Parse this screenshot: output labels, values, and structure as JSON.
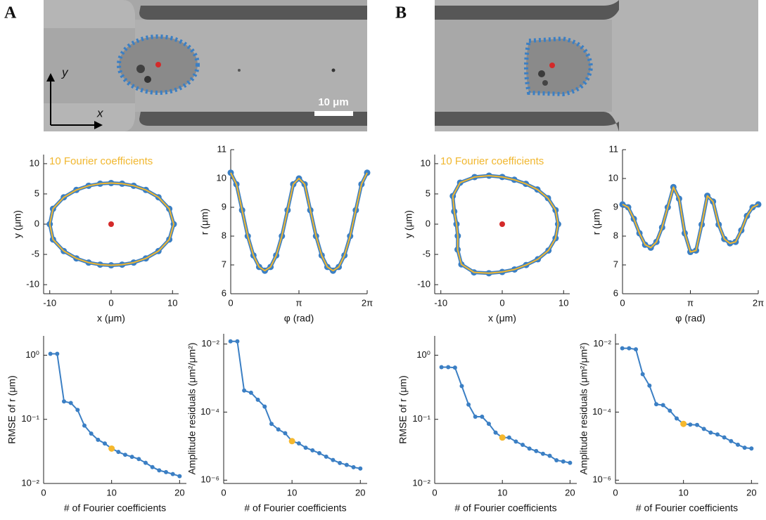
{
  "panels": [
    {
      "label": "A",
      "scale_bar": "10 μm",
      "x_arrow": "x",
      "y_arrow": "y"
    },
    {
      "label": "B"
    }
  ],
  "chart_data": [
    {
      "type": "line",
      "closed": true,
      "annotation": "10 Fourier coefficients",
      "annotation_color": "#f1b72f",
      "xlabel": "x (μm)",
      "ylabel": "y (μm)",
      "xlim": [
        -11,
        11
      ],
      "ylim": [
        -11.5,
        11.5
      ],
      "xticks": [
        -10,
        0,
        10
      ],
      "yticks": [
        -10,
        -5,
        0,
        5,
        10
      ],
      "series": [
        {
          "color": "#3b7fc4",
          "fit_color": "#f1b72f",
          "x": [
            10.2,
            9.47,
            7.71,
            5.66,
            3.67,
            1.79,
            0,
            -1.79,
            -3.67,
            -5.66,
            -7.71,
            -9.47,
            -10,
            -9.47,
            -7.71,
            -5.66,
            -3.67,
            -1.79,
            0,
            1.79,
            3.67,
            5.66,
            7.71,
            9.47
          ],
          "values": [
            0,
            2.54,
            4.45,
            5.66,
            6.35,
            6.69,
            6.8,
            6.69,
            6.35,
            5.66,
            4.45,
            2.54,
            0,
            -2.54,
            -4.45,
            -5.66,
            -6.35,
            -6.69,
            -6.8,
            -6.69,
            -6.35,
            -5.66,
            -4.45,
            -2.54
          ]
        }
      ],
      "center": {
        "x": 0,
        "y": 0,
        "color": "#d42a2a"
      }
    },
    {
      "type": "line",
      "xlabel": "φ (rad)",
      "ylabel": "r (μm)",
      "xlim": [
        0,
        6.2832
      ],
      "ylim": [
        6,
        11
      ],
      "xticks": [
        0,
        {
          "value": 3.1416,
          "label": "π"
        },
        {
          "value": 6.2832,
          "label": "2π"
        }
      ],
      "yticks": [
        6,
        7,
        8,
        9,
        10,
        11
      ],
      "series": [
        {
          "color": "#3b7fc4",
          "fit_color": "#f1b72f",
          "x": [
            0,
            0.262,
            0.524,
            0.785,
            1.047,
            1.309,
            1.571,
            1.833,
            2.094,
            2.356,
            2.618,
            2.88,
            3.142,
            3.403,
            3.665,
            3.927,
            4.189,
            4.451,
            4.712,
            4.974,
            5.236,
            5.498,
            5.76,
            6.021,
            6.283
          ],
          "values": [
            10.2,
            9.8,
            8.9,
            8.0,
            7.33,
            6.93,
            6.8,
            6.93,
            7.33,
            8.0,
            8.9,
            9.8,
            10.0,
            9.8,
            8.9,
            8.0,
            7.33,
            6.93,
            6.8,
            6.93,
            7.33,
            8.0,
            8.9,
            9.8,
            10.2
          ]
        }
      ]
    },
    {
      "type": "line",
      "log_y": true,
      "xlabel": "# of Fourier coefficients",
      "ylabel": "RMSE of r (μm)",
      "xlim": [
        0,
        21
      ],
      "ylim": [
        0.01,
        2
      ],
      "xticks": [
        0,
        10,
        20
      ],
      "yticks": [
        {
          "value": 0.01,
          "label": "10⁻²"
        },
        {
          "value": 0.1,
          "label": "10⁻¹"
        },
        {
          "value": 1,
          "label": "10⁰"
        }
      ],
      "series": [
        {
          "color": "#3b7fc4",
          "x": [
            1,
            2,
            3,
            4,
            5,
            6,
            7,
            8,
            9,
            10,
            11,
            12,
            13,
            14,
            15,
            16,
            17,
            18,
            19,
            20
          ],
          "values": [
            1.05,
            1.05,
            0.19,
            0.18,
            0.14,
            0.08,
            0.06,
            0.048,
            0.042,
            0.035,
            0.031,
            0.028,
            0.026,
            0.024,
            0.021,
            0.018,
            0.016,
            0.015,
            0.014,
            0.013
          ]
        },
        {
          "color": "#f5b82e",
          "line": false,
          "x": [
            10
          ],
          "values": [
            0.035
          ]
        }
      ]
    },
    {
      "type": "line",
      "log_y": true,
      "xlabel": "# of Fourier coefficients",
      "ylabel": "Amplitude residuals (μm²/μm²)",
      "xlim": [
        0,
        21
      ],
      "ylim": [
        8e-07,
        0.02
      ],
      "xticks": [
        0,
        10,
        20
      ],
      "yticks": [
        {
          "value": 1e-06,
          "label": "10⁻⁶"
        },
        {
          "value": 0.0001,
          "label": "10⁻⁴"
        },
        {
          "value": 0.01,
          "label": "10⁻²"
        }
      ],
      "series": [
        {
          "color": "#3b7fc4",
          "x": [
            1,
            2,
            3,
            4,
            5,
            6,
            7,
            8,
            9,
            10,
            11,
            12,
            13,
            14,
            15,
            16,
            17,
            18,
            19,
            20
          ],
          "values": [
            0.012,
            0.012,
            0.00043,
            0.00037,
            0.00023,
            0.000145,
            4.5e-05,
            3.1e-05,
            2.4e-05,
            1.4e-05,
            1.2e-05,
            9e-06,
            7.5e-06,
            6.2e-06,
            4.9e-06,
            3.9e-06,
            3.2e-06,
            2.8e-06,
            2.4e-06,
            2.2e-06
          ]
        },
        {
          "color": "#f5b82e",
          "line": false,
          "x": [
            10
          ],
          "values": [
            1.4e-05
          ]
        }
      ]
    },
    {
      "type": "line",
      "closed": true,
      "annotation": "10 Fourier coefficients",
      "annotation_color": "#f1b72f",
      "xlabel": "x (μm)",
      "ylabel": "y (μm)",
      "xlim": [
        -11,
        11
      ],
      "ylim": [
        -11.5,
        11.5
      ],
      "xticks": [
        -10,
        0,
        10
      ],
      "yticks": [
        -10,
        -5,
        0,
        5,
        10
      ],
      "series": [
        {
          "color": "#3b7fc4",
          "fit_color": "#f1b72f",
          "x": [
            9.1,
            8.69,
            7.45,
            5.73,
            3.85,
            1.97,
            0,
            -2.15,
            -4.5,
            -6.86,
            -8.05,
            -7.82,
            -7.45,
            -7.24,
            -7.27,
            -6.65,
            -4.6,
            -2.17,
            0,
            2.01,
            3.9,
            5.8,
            7.53,
            8.69
          ],
          "values": [
            0,
            2.33,
            4.3,
            5.73,
            6.67,
            7.34,
            7.8,
            8.02,
            7.79,
            6.86,
            4.65,
            2.1,
            0,
            -1.94,
            -4.2,
            -6.65,
            -7.97,
            -8.11,
            -7.9,
            -7.49,
            -6.75,
            -5.8,
            -4.35,
            -2.33
          ]
        }
      ],
      "center": {
        "x": 0,
        "y": 0,
        "color": "#d42a2a"
      }
    },
    {
      "type": "line",
      "xlabel": "φ (rad)",
      "ylabel": "r (μm)",
      "xlim": [
        0,
        6.2832
      ],
      "ylim": [
        6,
        11
      ],
      "xticks": [
        0,
        {
          "value": 3.1416,
          "label": "π"
        },
        {
          "value": 6.2832,
          "label": "2π"
        }
      ],
      "yticks": [
        6,
        7,
        8,
        9,
        10,
        11
      ],
      "series": [
        {
          "color": "#3b7fc4",
          "fit_color": "#f1b72f",
          "x": [
            0,
            0.262,
            0.524,
            0.785,
            1.047,
            1.309,
            1.571,
            1.833,
            2.094,
            2.356,
            2.618,
            2.88,
            3.142,
            3.403,
            3.665,
            3.927,
            4.189,
            4.451,
            4.712,
            4.974,
            5.236,
            5.498,
            5.76,
            6.021,
            6.283
          ],
          "values": [
            9.1,
            9.0,
            8.6,
            8.1,
            7.7,
            7.6,
            7.8,
            8.3,
            9.0,
            9.7,
            9.3,
            8.1,
            7.45,
            7.5,
            8.4,
            9.4,
            9.2,
            8.4,
            7.9,
            7.75,
            7.8,
            8.2,
            8.7,
            9.0,
            9.1
          ]
        }
      ]
    },
    {
      "type": "line",
      "log_y": true,
      "xlabel": "# of Fourier coefficients",
      "ylabel": "RMSE of r (μm)",
      "xlim": [
        0,
        21
      ],
      "ylim": [
        0.01,
        2
      ],
      "xticks": [
        0,
        10,
        20
      ],
      "yticks": [
        {
          "value": 0.01,
          "label": "10⁻²"
        },
        {
          "value": 0.1,
          "label": "10⁻¹"
        },
        {
          "value": 1,
          "label": "10⁰"
        }
      ],
      "series": [
        {
          "color": "#3b7fc4",
          "x": [
            1,
            2,
            3,
            4,
            5,
            6,
            7,
            8,
            9,
            10,
            11,
            12,
            13,
            14,
            15,
            16,
            17,
            18,
            19,
            20
          ],
          "values": [
            0.65,
            0.65,
            0.64,
            0.33,
            0.17,
            0.11,
            0.11,
            0.085,
            0.062,
            0.052,
            0.052,
            0.045,
            0.04,
            0.035,
            0.032,
            0.029,
            0.027,
            0.023,
            0.022,
            0.021
          ]
        },
        {
          "color": "#f5b82e",
          "line": false,
          "x": [
            10
          ],
          "values": [
            0.052
          ]
        }
      ]
    },
    {
      "type": "line",
      "log_y": true,
      "xlabel": "# of Fourier coefficients",
      "ylabel": "Amplitude residuals (μm²/μm²)",
      "xlim": [
        0,
        21
      ],
      "ylim": [
        8e-07,
        0.02
      ],
      "xticks": [
        0,
        10,
        20
      ],
      "yticks": [
        {
          "value": 1e-06,
          "label": "10⁻⁶"
        },
        {
          "value": 0.0001,
          "label": "10⁻⁴"
        },
        {
          "value": 0.01,
          "label": "10⁻²"
        }
      ],
      "series": [
        {
          "color": "#3b7fc4",
          "x": [
            1,
            2,
            3,
            4,
            5,
            6,
            7,
            8,
            9,
            10,
            11,
            12,
            13,
            14,
            15,
            16,
            17,
            18,
            19,
            20
          ],
          "values": [
            0.0075,
            0.0075,
            0.007,
            0.0013,
            0.0006,
            0.00017,
            0.00016,
            0.00011,
            6.5e-05,
            4.5e-05,
            4.3e-05,
            4.2e-05,
            3.2e-05,
            2.5e-05,
            2.2e-05,
            1.8e-05,
            1.4e-05,
            1.1e-05,
            9e-06,
            8.5e-06
          ]
        },
        {
          "color": "#f5b82e",
          "line": false,
          "x": [
            10
          ],
          "values": [
            4.5e-05
          ]
        }
      ]
    }
  ]
}
